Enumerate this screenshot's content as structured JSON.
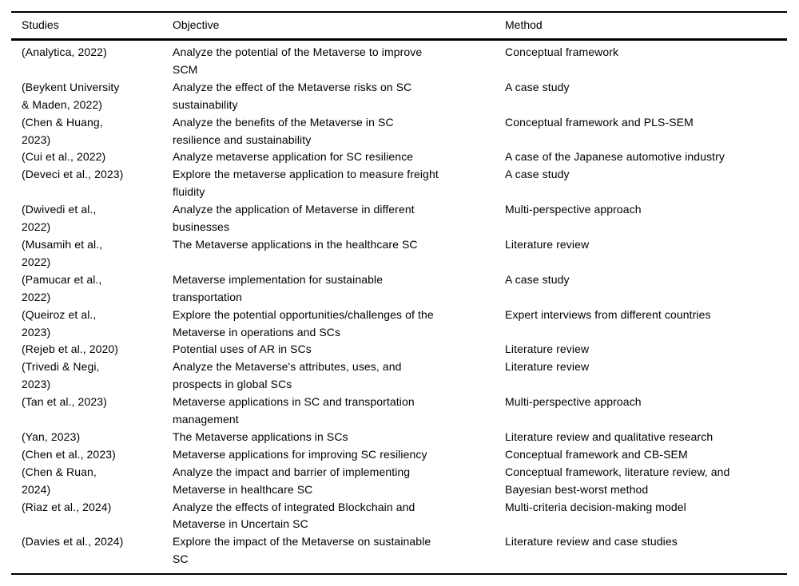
{
  "colors": {
    "background": "#ffffff",
    "text": "#000000",
    "rule": "#000000"
  },
  "table": {
    "headers": [
      "Studies",
      "Objective",
      "Method"
    ],
    "rows": [
      {
        "studies": "(Analytica, 2022)",
        "objective": "Analyze the potential of the Metaverse to improve\nSCM",
        "method": "Conceptual framework"
      },
      {
        "studies": "(Beykent University\n& Maden, 2022)",
        "objective": "Analyze the effect of the Metaverse risks on SC\nsustainability",
        "method": "A case study"
      },
      {
        "studies": "(Chen & Huang,\n2023)",
        "objective": "Analyze the benefits of the Metaverse in SC\nresilience and sustainability",
        "method": "Conceptual framework and PLS-SEM"
      },
      {
        "studies": "(Cui et al., 2022)",
        "objective": "Analyze metaverse application for SC resilience",
        "method": "A case of the Japanese automotive industry"
      },
      {
        "studies": "(Deveci et al., 2023)",
        "objective": "Explore the metaverse application to measure freight\nfluidity",
        "method": "A case study"
      },
      {
        "studies": "(Dwivedi et al.,\n2022)",
        "objective": "Analyze the application of Metaverse in different\nbusinesses",
        "method": "Multi-perspective approach"
      },
      {
        "studies": "(Musamih et al.,\n2022)",
        "objective": "The Metaverse applications in the healthcare SC",
        "method": "Literature review"
      },
      {
        "studies": "(Pamucar et al.,\n2022)",
        "objective": "Metaverse implementation for sustainable\ntransportation",
        "method": "A case study"
      },
      {
        "studies": "(Queiroz et al.,\n2023)",
        "objective": "Explore the potential opportunities/challenges of the\nMetaverse in operations and SCs",
        "method": "Expert interviews from different countries"
      },
      {
        "studies": "(Rejeb et al., 2020)",
        "objective": "Potential uses of AR in SCs",
        "method": "Literature review"
      },
      {
        "studies": "(Trivedi & Negi,\n2023)",
        "objective": "Analyze the Metaverse's attributes, uses, and\nprospects in global SCs",
        "method": "Literature review"
      },
      {
        "studies": "(Tan et al., 2023)",
        "objective": "Metaverse applications in SC and transportation\nmanagement",
        "method": "Multi-perspective approach"
      },
      {
        "studies": "(Yan, 2023)",
        "objective": "The Metaverse applications in SCs",
        "method": "Literature review and qualitative research"
      },
      {
        "studies": "(Chen et al., 2023)",
        "objective": "Metaverse applications for improving SC resiliency",
        "method": "Conceptual framework and CB-SEM"
      },
      {
        "studies": "(Chen & Ruan,\n2024)",
        "objective": "Analyze the impact and barrier of implementing\nMetaverse in healthcare SC",
        "method": "Conceptual framework, literature review, and\nBayesian best-worst method"
      },
      {
        "studies": "(Riaz et al., 2024)",
        "objective": "Analyze the effects of integrated Blockchain and\nMetaverse in Uncertain SC",
        "method": "Multi-criteria decision-making model"
      },
      {
        "studies": "(Davies et al., 2024)",
        "objective": "Explore the impact of the Metaverse on sustainable\nSC",
        "method": "Literature review and case studies"
      }
    ]
  }
}
